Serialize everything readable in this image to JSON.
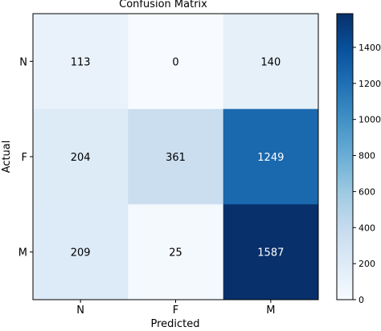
{
  "chart_data": {
    "type": "heatmap",
    "title": "Confusion Matrix",
    "xlabel": "Predicted",
    "ylabel": "Actual",
    "x_categories": [
      "N",
      "F",
      "M"
    ],
    "y_categories": [
      "N",
      "F",
      "M"
    ],
    "values": [
      [
        113,
        0,
        140
      ],
      [
        204,
        361,
        1249
      ],
      [
        209,
        25,
        1587
      ]
    ],
    "cell_labels": [
      [
        "113",
        "0",
        "140"
      ],
      [
        "204",
        "361",
        "1249"
      ],
      [
        "209",
        "25",
        "1587"
      ]
    ],
    "colormap": "Blues",
    "colorbar": {
      "min": 0,
      "max": 1587,
      "ticks": [
        0,
        200,
        400,
        600,
        800,
        1000,
        1200,
        1400
      ],
      "tick_labels": [
        "0",
        "200",
        "400",
        "600",
        "800",
        "1000",
        "1200",
        "1400"
      ]
    },
    "grid": false
  }
}
